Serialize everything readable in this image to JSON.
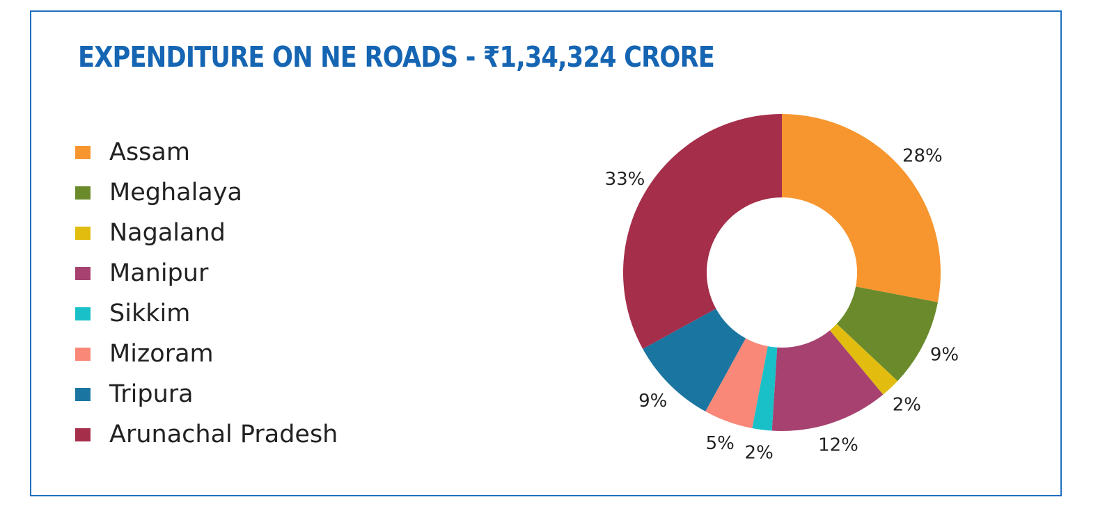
{
  "title": "EXPENDITURE ON NE ROADS -  ₹1,34,324 CRORE",
  "colors": {
    "title": "#1565b3",
    "border": "#1f6fbf"
  },
  "chart_data": {
    "type": "pie",
    "donut": true,
    "legend_position": "left",
    "slices": [
      {
        "name": "Assam",
        "value": 28,
        "label": "28%",
        "color": "#f7962f"
      },
      {
        "name": "Meghalaya",
        "value": 9,
        "label": "9%",
        "color": "#6b8a2c"
      },
      {
        "name": "Nagaland",
        "value": 2,
        "label": "2%",
        "color": "#e2bd10"
      },
      {
        "name": "Manipur",
        "value": 12,
        "label": "12%",
        "color": "#a64170"
      },
      {
        "name": "Sikkim",
        "value": 2,
        "label": "2%",
        "color": "#19c0c8"
      },
      {
        "name": "Mizoram",
        "value": 5,
        "label": "5%",
        "color": "#f98878"
      },
      {
        "name": "Tripura",
        "value": 9,
        "label": "9%",
        "color": "#1b75a1"
      },
      {
        "name": "Arunachal Pradesh",
        "value": 33,
        "label": "33%",
        "color": "#a52e4a"
      }
    ]
  }
}
